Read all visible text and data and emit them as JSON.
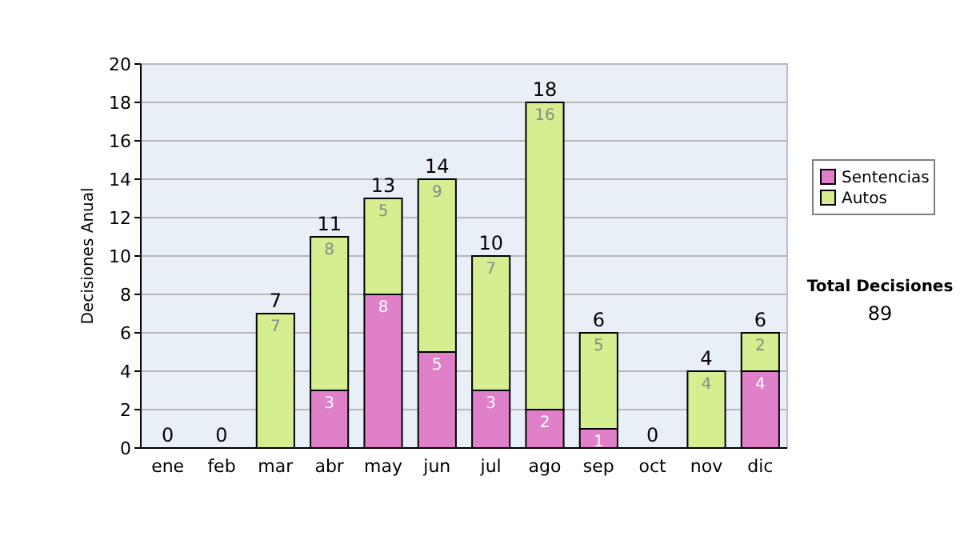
{
  "chart_data": {
    "type": "bar",
    "stacked": true,
    "ylabel": "Decisiones Anual",
    "categories": [
      "ene",
      "feb",
      "mar",
      "abr",
      "may",
      "jun",
      "jul",
      "ago",
      "sep",
      "oct",
      "nov",
      "dic"
    ],
    "series": [
      {
        "name": "Sentencias",
        "color": "#e080c8",
        "values": [
          0,
          0,
          0,
          3,
          8,
          5,
          3,
          2,
          1,
          0,
          0,
          4
        ],
        "value_labels": [
          null,
          null,
          null,
          "3",
          "8",
          "5",
          "3",
          "2",
          "1",
          null,
          null,
          "4"
        ]
      },
      {
        "name": "Autos",
        "color": "#d4ee90",
        "values": [
          0,
          0,
          7,
          8,
          5,
          9,
          7,
          16,
          5,
          0,
          4,
          2
        ],
        "value_labels": [
          null,
          null,
          "7",
          "8",
          "5",
          "9",
          "7",
          "16",
          "5",
          null,
          "4",
          "2"
        ]
      }
    ],
    "totals": [
      "0",
      "0",
      "7",
      "11",
      "13",
      "14",
      "10",
      "18",
      "6",
      "0",
      "4",
      "6"
    ],
    "ylim": [
      0,
      20
    ],
    "yticks": [
      0,
      2,
      4,
      6,
      8,
      10,
      12,
      14,
      16,
      18,
      20
    ],
    "grid": "y",
    "legend": "right",
    "annotations": [
      "Total Decisiones",
      "89"
    ]
  }
}
